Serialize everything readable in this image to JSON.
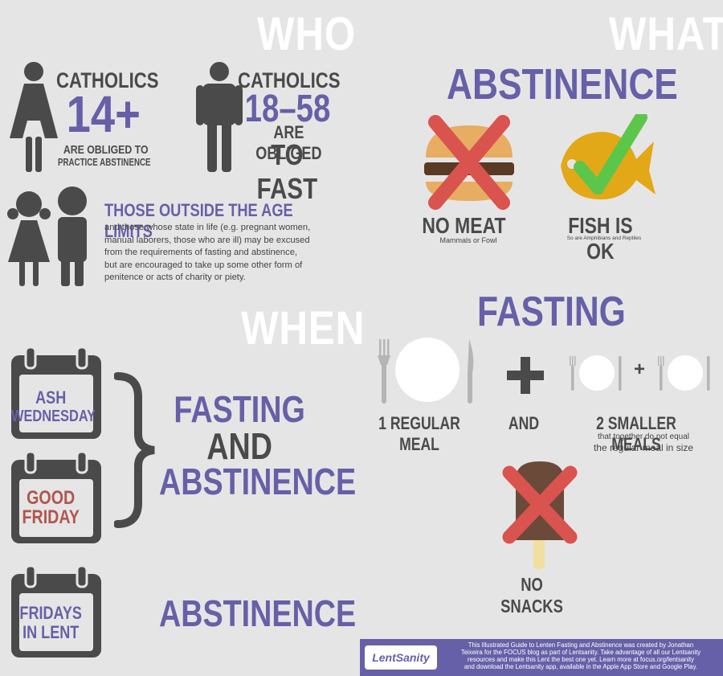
{
  "sections": {
    "who": "WHO",
    "what": "WHAT",
    "when": "WHEN"
  },
  "who": {
    "group1": {
      "line1": "CATHOLICS",
      "age": "14+",
      "line2": "ARE OBLIGED TO",
      "line3": "PRACTICE ABSTINENCE"
    },
    "group2": {
      "line1": "CATHOLICS",
      "age": "18–58",
      "line2": "ARE OBLIGED",
      "line3": "TO FAST"
    },
    "outside": {
      "heading": "THOSE OUTSIDE THE AGE LIMITS",
      "body": [
        "and those whose state in life (e.g. pregnant women,",
        "manual laborers, those who are ill) may be excused",
        "from the requirements of fasting and abstinence,",
        "but are encouraged to take up some other form of",
        "penitence or acts of charity or piety."
      ]
    }
  },
  "what": {
    "abstinence_title": "ABSTINENCE",
    "no_meat": "NO MEAT",
    "no_meat_sub": "Mammals or Fowl",
    "fish_ok": "FISH IS OK",
    "fish_sub": "So are Amphibians and Reptiles",
    "fasting_title": "FASTING",
    "regular_meal": "1 REGULAR MEAL",
    "and": "AND",
    "smaller_meals": "2 SMALLER MEALS",
    "smaller_sub1": "that together do not equal",
    "smaller_sub2": "the regular meal in size",
    "plus": "+",
    "no_snacks": "NO SNACKS"
  },
  "when": {
    "ash_line1": "ASH",
    "ash_line2": "WEDNESDAY",
    "good_line1": "GOOD",
    "good_line2": "FRIDAY",
    "fa_line1": "FASTING",
    "fa_line2": "AND",
    "fa_line3": "ABSTINENCE",
    "fridays_line1": "FRIDAYS",
    "fridays_line2": "IN LENT",
    "abstinence_only": "ABSTINENCE"
  },
  "footer": {
    "logo": "LentSanity",
    "line1": "This Illustrated Guide to Lenten Fasting and Abstinence was created by Jonathan",
    "line2": "Teixeira for the FOCUS blog as part of Lentsanity. Take advantage of all our Lentsanity",
    "line3": "resources and make this Lent the best one yet. Learn more at focus.org/lentsanity",
    "line4": "and download the Lentsanity app, available in the Apple App Store and Google Play."
  },
  "colors": {
    "background": "#e6e5e5",
    "dark": "#4a4a4a",
    "purple": "#6660a8",
    "red": "#d9534f",
    "green": "#5cc64a",
    "gold": "#e3a817"
  }
}
